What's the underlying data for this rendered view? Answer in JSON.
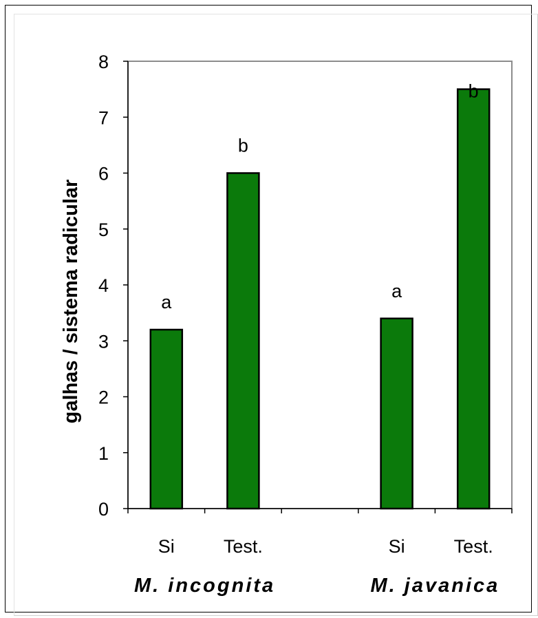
{
  "chart_data": {
    "type": "bar",
    "title": "",
    "ylabel": "galhas / sistema radicular",
    "xlabel": "",
    "ylim": [
      0,
      8
    ],
    "yticks": [
      0,
      1,
      2,
      3,
      4,
      5,
      6,
      7,
      8
    ],
    "groups": [
      {
        "name": "M. incognita",
        "categories": [
          "Si",
          "Test."
        ],
        "values": [
          3.2,
          6.0
        ],
        "significance": [
          "a",
          "b"
        ]
      },
      {
        "name": "M. javanica",
        "categories": [
          "Si",
          "Test."
        ],
        "values": [
          3.4,
          7.5
        ],
        "significance": [
          "a",
          "b"
        ]
      }
    ],
    "grid": false,
    "legend": "none",
    "bar_color": "#0b7a0b"
  }
}
